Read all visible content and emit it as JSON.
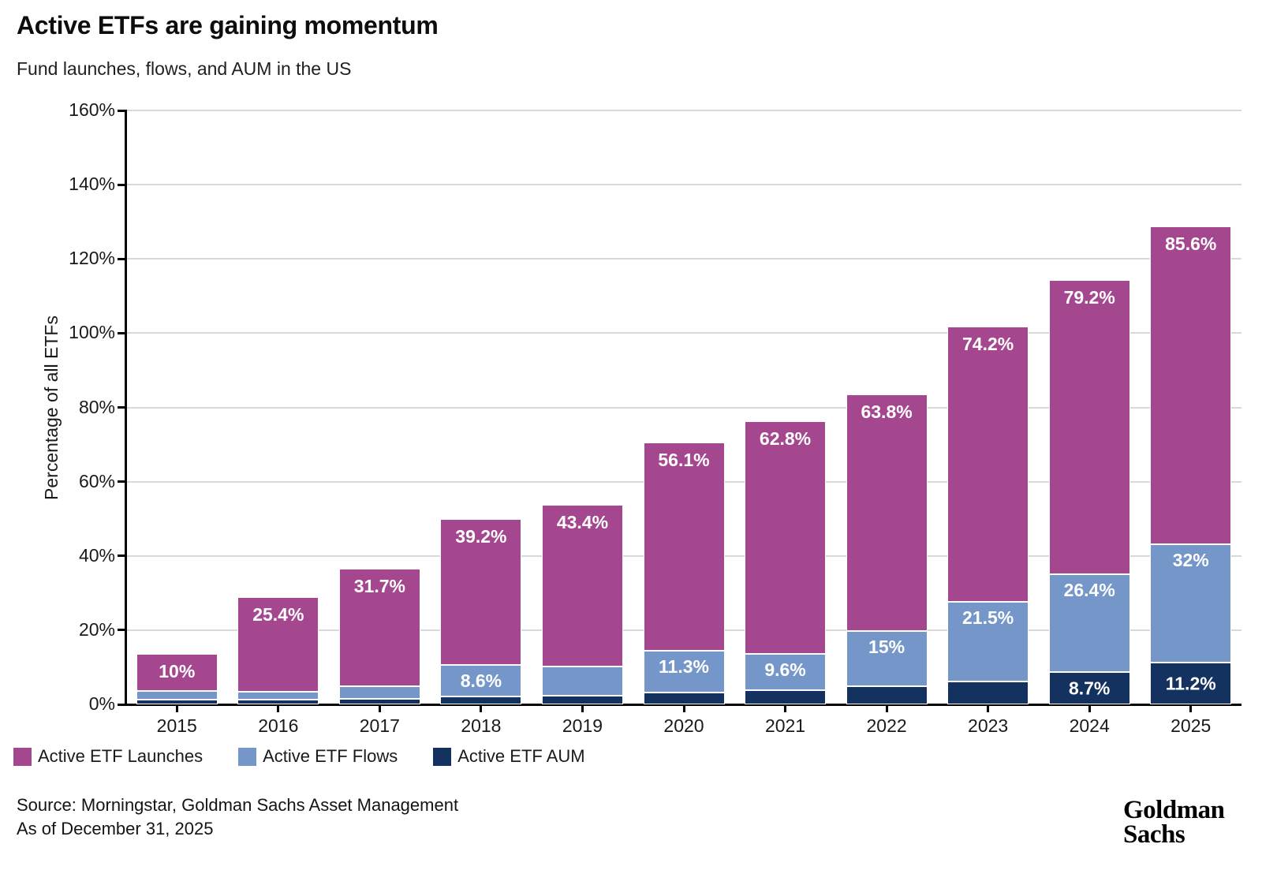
{
  "title": "Active ETFs are gaining momentum",
  "subtitle": "Fund launches, flows, and AUM in the US",
  "source_line1": "Source: Morningstar, Goldman Sachs Asset Management",
  "source_line2": "As of December 31, 2025",
  "logo": {
    "line1": "Goldman",
    "line2": "Sachs"
  },
  "colors": {
    "launches": "#A5478F",
    "flows": "#7496C8",
    "aum": "#133260",
    "grid": "#D9D9D9",
    "axis": "#000000",
    "label_text": "#FFFFFF"
  },
  "legend": [
    {
      "key": "launches",
      "label": "Active ETF Launches"
    },
    {
      "key": "flows",
      "label": "Active ETF Flows"
    },
    {
      "key": "aum",
      "label": "Active ETF AUM"
    }
  ],
  "chart_data": {
    "type": "bar",
    "stacked": true,
    "title": "Active ETFs are gaining momentum",
    "subtitle": "Fund launches, flows, and AUM in the US",
    "xlabel": "",
    "ylabel": "Percentage of all ETFs",
    "ylim": [
      0,
      160
    ],
    "yticks": [
      "0%",
      "20%",
      "40%",
      "60%",
      "80%",
      "100%",
      "120%",
      "140%",
      "160%"
    ],
    "grid": true,
    "legend_position": "bottom",
    "categories": [
      "2015",
      "2016",
      "2017",
      "2018",
      "2019",
      "2020",
      "2021",
      "2022",
      "2023",
      "2024",
      "2025"
    ],
    "stack_bottom_to_top": [
      "Active ETF AUM",
      "Active ETF Flows",
      "Active ETF Launches"
    ],
    "series": [
      {
        "name": "Active ETF Launches",
        "color_key": "launches",
        "values": [
          10,
          25.4,
          31.7,
          39.2,
          43.4,
          56.1,
          62.8,
          63.8,
          74.2,
          79.2,
          85.6
        ],
        "labels": [
          "10%",
          "25.4%",
          "31.7%",
          "39.2%",
          "43.4%",
          "56.1%",
          "62.8%",
          "63.8%",
          "74.2%",
          "79.2%",
          "85.6%"
        ]
      },
      {
        "name": "Active ETF Flows",
        "color_key": "flows",
        "values": [
          2.5,
          2.2,
          3.3,
          8.6,
          8.0,
          11.3,
          9.6,
          15,
          21.5,
          26.4,
          32
        ],
        "labels": [
          "",
          "",
          "",
          "8.6%",
          "",
          "11.3%",
          "9.6%",
          "15%",
          "21.5%",
          "26.4%",
          "32%"
        ]
      },
      {
        "name": "Active ETF AUM",
        "color_key": "aum",
        "values": [
          1.2,
          1.2,
          1.5,
          2.1,
          2.3,
          3.2,
          3.9,
          4.8,
          6.1,
          8.7,
          11.2
        ],
        "labels": [
          "",
          "",
          "",
          "",
          "",
          "",
          "",
          "",
          "",
          "8.7%",
          "11.2%"
        ]
      }
    ]
  }
}
